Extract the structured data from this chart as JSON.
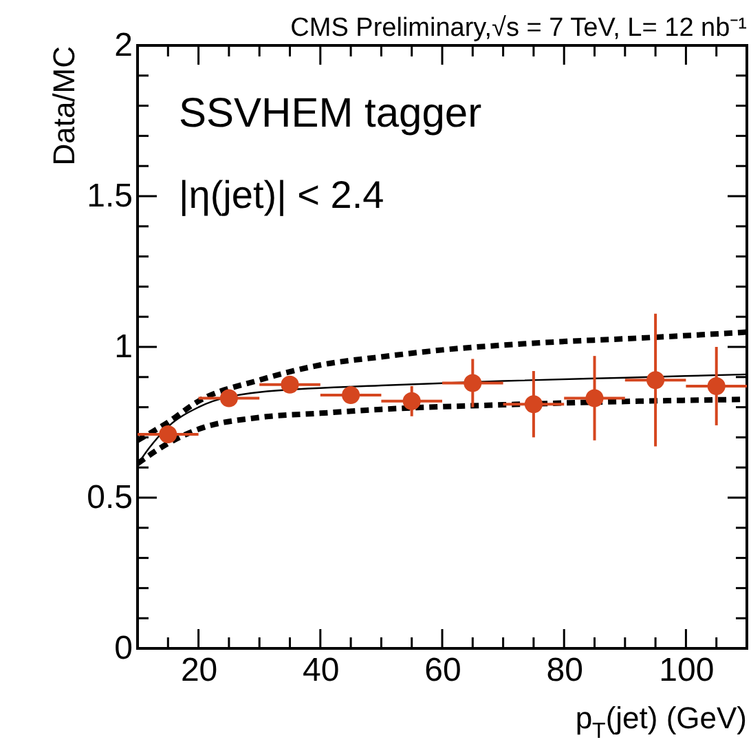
{
  "chart_data": {
    "type": "line",
    "title": "CMS Preliminary,√s = 7 TeV, L= 12 nb⁻¹",
    "xlabel": "p$_{T}$(jet) (GeV)",
    "ylabel": "Data/MC",
    "annotations": [
      "SSVHEM tagger",
      "|η(jet)| < 2.4"
    ],
    "xlim": [
      10,
      110
    ],
    "ylim": [
      0,
      2
    ],
    "xticks": [
      {
        "value": 15,
        "label": null
      },
      20,
      {
        "value": 25,
        "label": null
      },
      {
        "value": 30,
        "label": null
      },
      {
        "value": 35,
        "label": null
      },
      40,
      {
        "value": 45,
        "label": null
      },
      {
        "value": 50,
        "label": null
      },
      {
        "value": 55,
        "label": null
      },
      60,
      {
        "value": 65,
        "label": null
      },
      {
        "value": 70,
        "label": null
      },
      {
        "value": 75,
        "label": null
      },
      80,
      {
        "value": 85,
        "label": null
      },
      {
        "value": 90,
        "label": null
      },
      {
        "value": 95,
        "label": null
      },
      100,
      {
        "value": 105,
        "label": null
      }
    ],
    "yticks": [
      0,
      {
        "value": 0.1,
        "label": null
      },
      {
        "value": 0.2,
        "label": null
      },
      {
        "value": 0.3,
        "label": null
      },
      {
        "value": 0.4,
        "label": null
      },
      0.5,
      {
        "value": 0.6,
        "label": null
      },
      {
        "value": 0.7,
        "label": null
      },
      {
        "value": 0.8,
        "label": null
      },
      {
        "value": 0.9,
        "label": null
      },
      1,
      {
        "value": 1.1,
        "label": null
      },
      {
        "value": 1.2,
        "label": null
      },
      {
        "value": 1.3,
        "label": null
      },
      {
        "value": 1.4,
        "label": null
      },
      1.5,
      {
        "value": 1.6,
        "label": null
      },
      {
        "value": 1.7,
        "label": null
      },
      {
        "value": 1.8,
        "label": null
      },
      {
        "value": 1.9,
        "label": null
      },
      2
    ],
    "grid": false,
    "series": [
      {
        "color": "#000000",
        "line_style": "solid",
        "x": [
          10,
          12,
          15,
          20,
          30,
          50,
          70,
          90,
          110
        ],
        "values": [
          0.61,
          0.667,
          0.735,
          0.8,
          0.85,
          0.872,
          0.887,
          0.898,
          0.909
        ]
      },
      {
        "color": "#000000",
        "line_style": "dashed",
        "x": [
          10,
          15,
          20,
          30,
          40,
          50,
          60,
          70,
          80,
          90,
          110
        ],
        "values": [
          0.69,
          0.75,
          0.82,
          0.89,
          0.94,
          0.967,
          0.99,
          1.006,
          1.018,
          1.027,
          1.049
        ]
      },
      {
        "color": "#000000",
        "line_style": "dashed",
        "x": [
          10,
          15,
          20,
          30,
          40,
          50,
          70,
          90,
          110
        ],
        "values": [
          0.613,
          0.68,
          0.727,
          0.766,
          0.78,
          0.793,
          0.808,
          0.819,
          0.826
        ]
      },
      {
        "type": "scatter",
        "marker": "circle",
        "color": "#d5461f",
        "x": [
          15,
          25,
          35,
          45,
          55,
          65,
          75,
          85,
          95,
          105
        ],
        "values": [
          0.71,
          0.83,
          0.875,
          0.84,
          0.82,
          0.88,
          0.81,
          0.83,
          0.89,
          0.87
        ],
        "errors": [
          0.02,
          0.02,
          0.02,
          0.02,
          0.05,
          0.08,
          0.11,
          0.14,
          0.22,
          0.13
        ],
        "xerrors": [
          5,
          5,
          5,
          5,
          5,
          5,
          5,
          5,
          5,
          5
        ]
      }
    ]
  }
}
